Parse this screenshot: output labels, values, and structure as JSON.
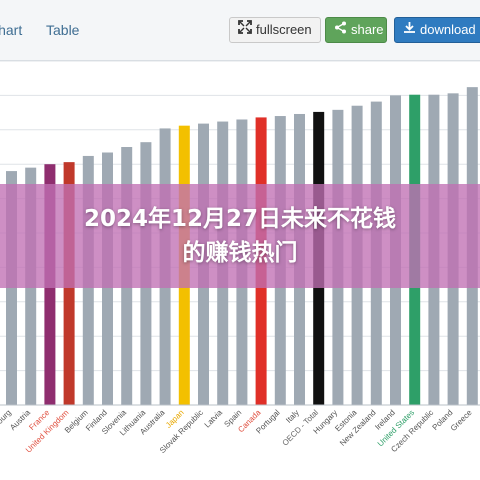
{
  "toolbar": {
    "tabs": [
      {
        "label": "Chart"
      },
      {
        "label": "Table"
      }
    ],
    "fullscreen_label": "fullscreen",
    "share_label": "share",
    "download_label": "download"
  },
  "headline": {
    "line1": "2024年12月27日未来不花钱",
    "line2": "的赚钱热门"
  },
  "colors": {
    "default_bar": "#9fa9b3",
    "france": "#8f2e6f",
    "united_kingdom": "#c0392b",
    "japan": "#f3c000",
    "canada": "#e03028",
    "oecd_total": "#111111",
    "united_states": "#2e9f68",
    "overlay": "#c070b4",
    "share_button": "#5fa45b",
    "download_button": "#2f7bc0"
  },
  "chart_data": {
    "type": "bar",
    "categories": [
      "Luxembourg",
      "Austria",
      "France",
      "United Kingdom",
      "Belgium",
      "Finland",
      "Slovenia",
      "Lithuania",
      "Australia",
      "Japan",
      "Slovak Republic",
      "Latvia",
      "Spain",
      "Canada",
      "Portugal",
      "Italy",
      "OECD - Total",
      "Hungary",
      "Estonia",
      "New Zealand",
      "Ireland",
      "United States",
      "Czech Republic",
      "Poland",
      "Greece"
    ],
    "values": [
      74,
      74.5,
      75,
      75.3,
      76.2,
      76.7,
      77.5,
      78.2,
      80.2,
      80.6,
      80.9,
      81.2,
      81.5,
      81.8,
      82.0,
      82.3,
      82.6,
      82.9,
      83.5,
      84.1,
      85.0,
      85.1,
      85.1,
      85.3,
      86.2
    ],
    "highlight": {
      "France": "france",
      "United Kingdom": "united_kingdom",
      "Japan": "japan",
      "Canada": "canada",
      "OECD - Total": "oecd_total",
      "United States": "united_states"
    },
    "highlight_label_colors": {
      "United Kingdom": "#e05040",
      "France": "#e05040",
      "Japan": "#e8a800",
      "Canada": "#e05040",
      "OECD - Total": "#666666",
      "United States": "#2e9f68"
    },
    "ylim": [
      40,
      90
    ],
    "grid": true
  }
}
